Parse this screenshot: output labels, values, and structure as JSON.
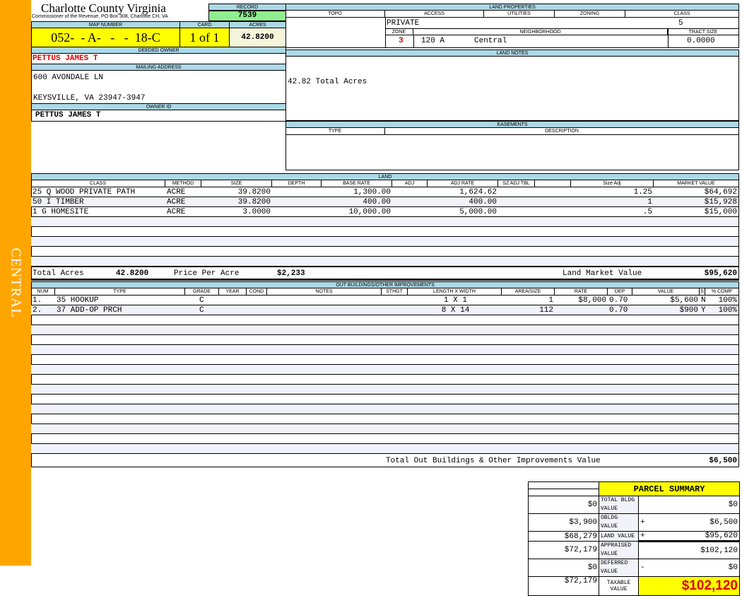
{
  "side_label": "CENTRAL",
  "header": {
    "title": "Charlotte County Virginia",
    "subtitle": "Commissioner of the Revenue, PO Box 308, Charlotte CH, VA",
    "record_label": "RECORD",
    "record": "7539",
    "map_label": "MAP NUMBER",
    "map_number": "052-  - A-   -   -  18-C",
    "card_label": "CARD",
    "card": "1 of 1",
    "acres_label": "ACRES",
    "acres": "42.8200"
  },
  "owner": {
    "deeded_label": "DEEDED OWNER",
    "deeded": "PETTUS JAMES T",
    "mailing_label": "MAILING ADDRESS",
    "address1": "600 AVONDALE LN",
    "address2": "KEYSVILLE, VA 23947-3947",
    "owner_id_label": "OWNER ID",
    "owner_id": "PETTUS JAMES T"
  },
  "land_properties": {
    "title": "LAND PROPERTIES",
    "topo_label": "TOPO",
    "access_label": "ACCESS",
    "utilities_label": "UTILITIES",
    "zoning_label": "ZONING",
    "class_label": "CLASS",
    "access": "PRIVATE",
    "class": "5",
    "zone_label": "ZONE",
    "neighborhood_label": "NEIGHBORHOOD",
    "tract_label": "TRACT SIZE",
    "zone": "3",
    "neighborhood_code": "120 A",
    "neighborhood": "Central",
    "tract_size": "0.0000"
  },
  "land_notes": {
    "title": "LAND NOTES",
    "text": "42.82 Total Acres"
  },
  "easements": {
    "title": "EASEMENTS",
    "type_label": "TYPE",
    "description_label": "DESCRIPTION"
  },
  "land": {
    "title": "LAND",
    "columns": [
      "CLASS",
      "METHOD",
      "SIZE",
      "DEPTH",
      "BASE RATE",
      "ADJ",
      "ADJ RATE",
      "SZ ADJ TBL",
      "",
      "Size Adj",
      "MARKET VALUE"
    ],
    "rows": [
      [
        "25 Q WOOD PRIVATE PATH",
        "ACRE",
        "39.8200",
        "",
        "1,300.00",
        "",
        "1,624.62",
        "",
        "",
        "1.25",
        "$64,692"
      ],
      [
        "50 I TIMBER",
        "ACRE",
        "39.8200",
        "",
        "400.00",
        "",
        "400.00",
        "",
        "",
        "1",
        "$15,928"
      ],
      [
        " 1 G HOMESITE",
        "ACRE",
        "3.0000",
        "",
        "10,000.00",
        "",
        "5,000.00",
        "",
        "",
        ".5",
        "$15,000"
      ]
    ],
    "total_acres_label": "Total Acres",
    "total_acres": "42.8200",
    "price_per_acre_label": "Price Per Acre",
    "price_per_acre": "$2,233",
    "market_value_label": "Land Market Value",
    "market_value": "$95,620"
  },
  "outbuildings": {
    "title": "OUT BUILDINGS/OTHER IMPROVEMENTS",
    "columns": [
      "NUM",
      "TYPE",
      "GRADE",
      "YEAR",
      "COND",
      "NOTES",
      "STHGT",
      "LENGTH X WIDTH",
      "AREA/SIZE",
      "RATE",
      "DEP",
      "VALUE",
      "S",
      "% COMP"
    ],
    "rows": [
      [
        "1.",
        "35 HOOKUP",
        "C",
        "",
        "",
        "",
        "",
        "1 X 1",
        "1",
        "$8,000",
        "0.70",
        "$5,600",
        "N",
        "100%"
      ],
      [
        "2.",
        "37 ADD-OP PRCH",
        "C",
        "",
        "",
        "",
        "",
        "8 X 14",
        "112",
        "",
        "0.70",
        "$900",
        "Y",
        "100%"
      ]
    ],
    "total_label": "Total Out Buildings & Other Improvements Value",
    "total": "$6,500"
  },
  "parcel_summary": {
    "title": "PARCEL SUMMARY",
    "rows": [
      {
        "left": "$0",
        "label": "TOTAL BLDG VALUE",
        "op": "",
        "value": "$0"
      },
      {
        "left": "$3,900",
        "label": "OBLDG VALUE",
        "op": "+",
        "value": "$6,500"
      },
      {
        "left": "$68,279",
        "label": "LAND VALUE",
        "op": "+",
        "value": "$95,620"
      },
      {
        "left": "$72,179",
        "label": "APPRAISED VALUE",
        "op": "",
        "value": "$102,120"
      },
      {
        "left": "$0",
        "label": "DEFERRED VALUE",
        "op": "-",
        "value": "$0"
      }
    ],
    "taxable_left": "$72,179",
    "taxable_label": "TAXABLE VALUE",
    "taxable_value": "$102,120"
  },
  "colors": {
    "side": "#ffa500",
    "label_bg": "#add8e6",
    "record_bg": "#90ee90",
    "highlight": "#ffff00",
    "owner_red": "#e00000"
  }
}
